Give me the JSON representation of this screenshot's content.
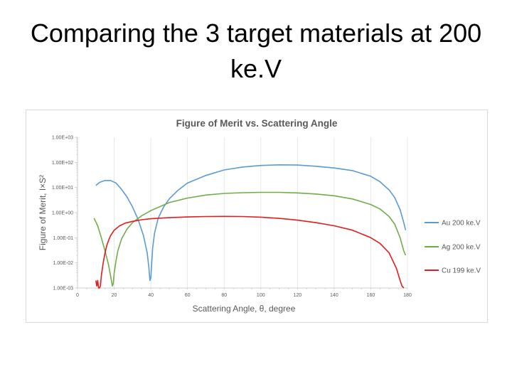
{
  "slide": {
    "title": "Comparing the 3 target materials at 200 ke.V"
  },
  "chart_data": {
    "type": "line",
    "title": "Figure of Merit vs. Scattering Angle",
    "xlabel": "Scattering Angle, θ, degree",
    "ylabel": "Figure of Merit, I×S²",
    "xlim": [
      0,
      180
    ],
    "y_scale": "log",
    "ylim": [
      0.001,
      1000
    ],
    "x_ticks": [
      0,
      20,
      40,
      60,
      80,
      100,
      120,
      140,
      160,
      180
    ],
    "y_ticks": [
      0.001,
      0.01,
      0.1,
      1,
      10,
      100,
      1000
    ],
    "y_tick_labels": [
      "1.00E-03",
      "1.00E-02",
      "1.00E-01",
      "1.00E+00",
      "1.00E+01",
      "1.00E+02",
      "1.00E+03"
    ],
    "grid": {
      "major_vertical": true,
      "major_horizontal": false
    },
    "legend_position": "right",
    "series": [
      {
        "name": "Au 200 ke.V",
        "color": "#5b9bd5",
        "x": [
          10,
          12,
          15,
          18,
          21,
          24,
          27,
          30,
          33,
          36,
          38,
          39,
          39.5,
          40,
          40.5,
          41,
          42,
          44,
          47,
          50,
          55,
          60,
          70,
          80,
          90,
          100,
          110,
          120,
          130,
          140,
          150,
          160,
          165,
          170,
          173,
          176,
          178,
          179
        ],
        "y": [
          12,
          16,
          19,
          19,
          15,
          8.5,
          4.2,
          1.7,
          0.55,
          0.12,
          0.025,
          0.006,
          0.002,
          0.0025,
          0.01,
          0.04,
          0.15,
          0.6,
          1.7,
          3.5,
          8,
          15,
          30,
          50,
          65,
          75,
          80,
          78,
          70,
          60,
          47,
          28,
          17,
          8,
          4,
          1.3,
          0.4,
          0.2
        ]
      },
      {
        "name": "Ag 200 ke.V",
        "color": "#70ad47",
        "x": [
          9,
          11,
          13,
          15,
          17,
          18.5,
          19,
          19.5,
          20,
          21,
          22,
          24,
          27,
          30,
          35,
          40,
          50,
          60,
          70,
          80,
          90,
          100,
          110,
          120,
          130,
          140,
          150,
          160,
          165,
          170,
          173,
          176,
          178,
          179
        ],
        "y": [
          0.6,
          0.3,
          0.1,
          0.03,
          0.008,
          0.002,
          0.0012,
          0.0015,
          0.004,
          0.012,
          0.03,
          0.09,
          0.22,
          0.4,
          0.75,
          1.2,
          2.5,
          3.8,
          5,
          5.8,
          6.2,
          6.4,
          6.4,
          6.1,
          5.5,
          4.7,
          3.5,
          2.1,
          1.4,
          0.7,
          0.35,
          0.1,
          0.03,
          0.02
        ]
      },
      {
        "name": "Cu 199 ke.V",
        "color": "#e31c1c",
        "x": [
          10,
          10.5,
          11,
          11.5,
          12,
          12.5,
          13,
          14,
          15,
          16,
          17,
          18,
          20,
          23,
          26,
          30,
          35,
          40,
          50,
          60,
          70,
          80,
          90,
          100,
          110,
          120,
          130,
          140,
          150,
          160,
          165,
          170,
          174,
          176,
          177,
          178
        ],
        "y": [
          0.002,
          0.0012,
          0.002,
          0.001,
          0.0008,
          0.0012,
          0.003,
          0.01,
          0.025,
          0.05,
          0.08,
          0.12,
          0.2,
          0.3,
          0.38,
          0.45,
          0.52,
          0.57,
          0.63,
          0.67,
          0.7,
          0.71,
          0.7,
          0.66,
          0.59,
          0.5,
          0.4,
          0.3,
          0.2,
          0.1,
          0.06,
          0.025,
          0.006,
          0.002,
          0.0012,
          0.0008
        ]
      }
    ]
  }
}
